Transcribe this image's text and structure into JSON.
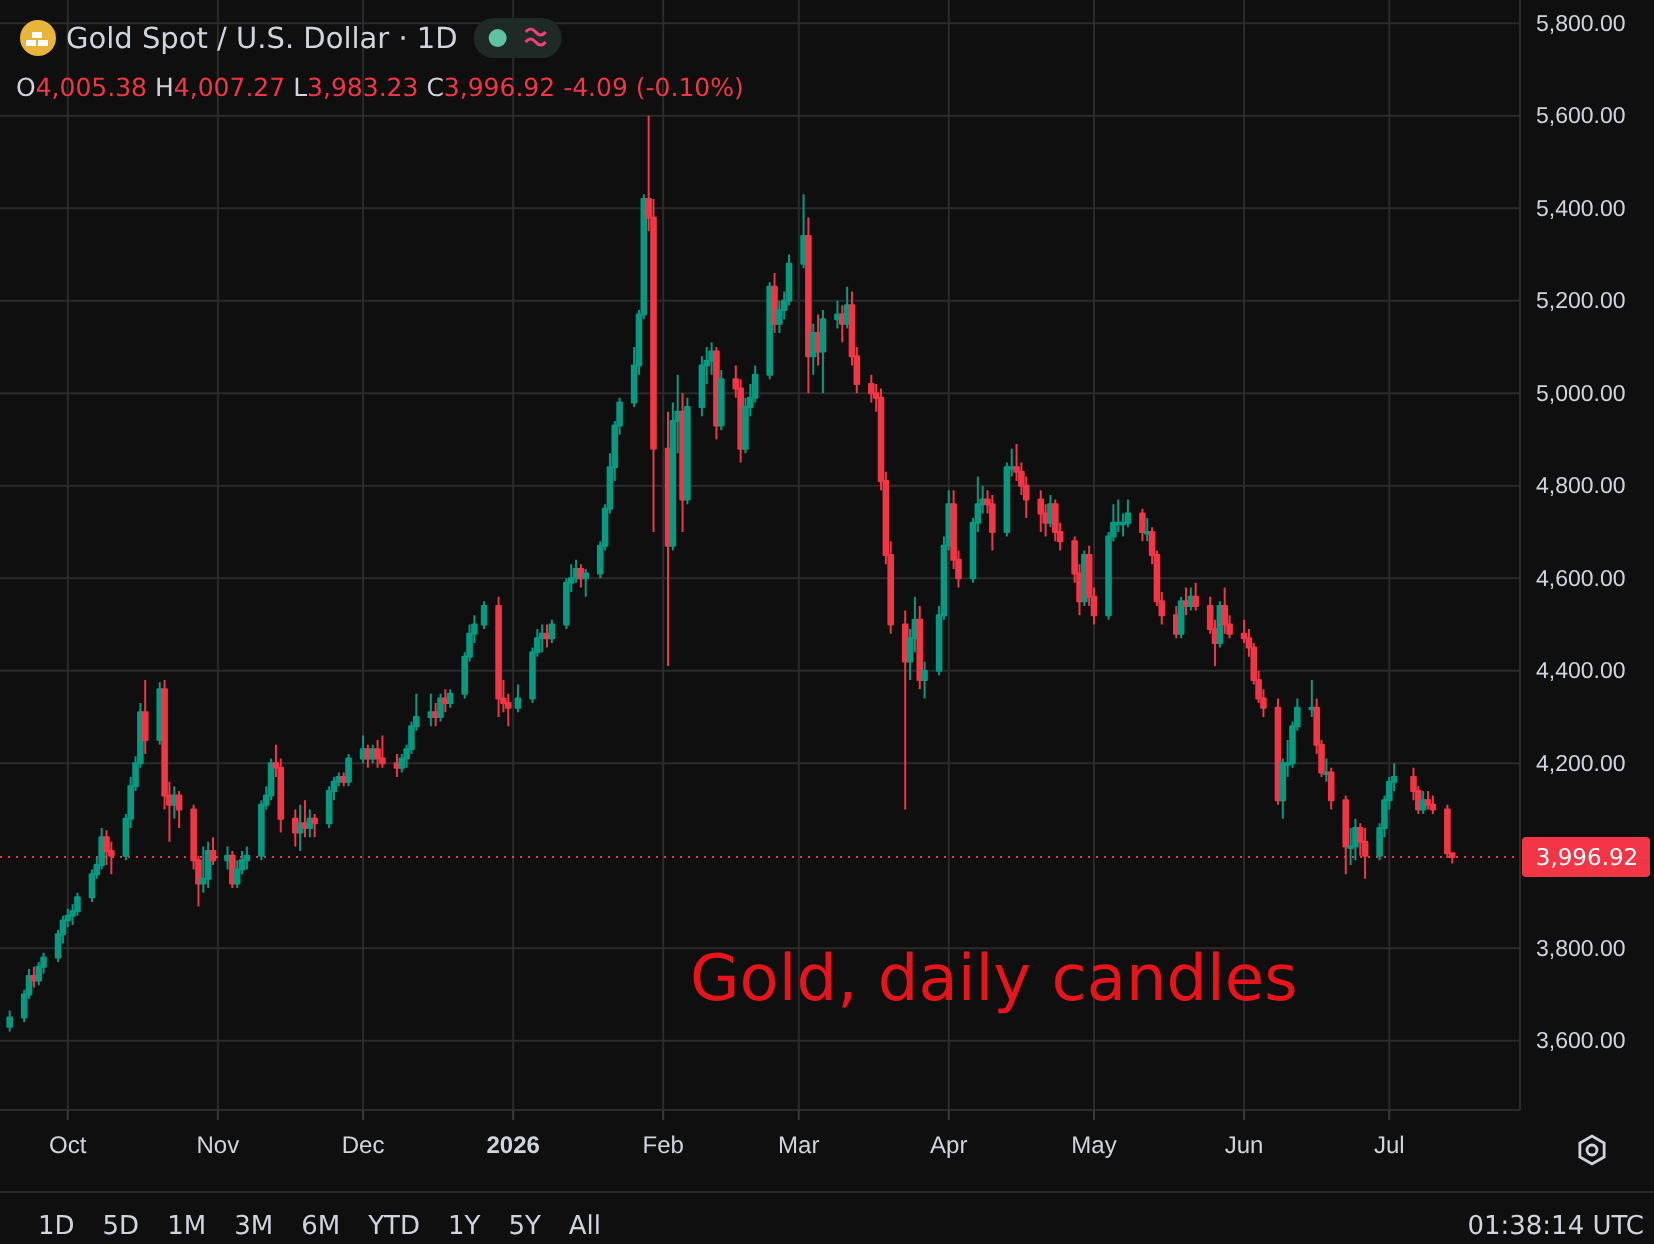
{
  "chart_data": {
    "type": "candlestick",
    "title": "Gold Spot / U.S. Dollar · 1D",
    "subtitle": "O4,005.38 H4,007.27 L3,983.23 C3,996.92 -4.09 (-0.10%)",
    "annotations": [
      "Gold, daily candles",
      "1D",
      "5D",
      "1M",
      "3M",
      "6M",
      "YTD",
      "1Y",
      "5Y",
      "All",
      "01:38:14 UTC"
    ],
    "xlim": [
      "2025-09-17",
      "2026-07-28"
    ],
    "ylim": [
      3450,
      5850
    ],
    "xticks": [
      {
        "value": "2025-10-01",
        "label": "Oct"
      },
      {
        "value": "2025-11-01",
        "label": "Nov"
      },
      {
        "value": "2025-12-01",
        "label": "Dec"
      },
      {
        "value": "2026-01-01",
        "label": "2026"
      },
      {
        "value": "2026-02-01",
        "label": "Feb"
      },
      {
        "value": "2026-03-01",
        "label": "Mar"
      },
      {
        "value": "2026-04-01",
        "label": "Apr"
      },
      {
        "value": "2026-05-01",
        "label": "May"
      },
      {
        "value": "2026-06-01",
        "label": "Jun"
      },
      {
        "value": "2026-07-01",
        "label": "Jul"
      }
    ],
    "yticks": [
      {
        "value": 3600,
        "label": "3,600.00"
      },
      {
        "value": 3800,
        "label": "3,800.00"
      },
      {
        "value": 4200,
        "label": "4,200.00"
      },
      {
        "value": 4400,
        "label": "4,400.00"
      },
      {
        "value": 4600,
        "label": "4,600.00"
      },
      {
        "value": 4800,
        "label": "4,800.00"
      },
      {
        "value": 5000,
        "label": "5,000.00"
      },
      {
        "value": 5200,
        "label": "5,200.00"
      },
      {
        "value": 5400,
        "label": "5,400.00"
      },
      {
        "value": 5600,
        "label": "5,600.00"
      },
      {
        "value": 5800,
        "label": "5,800.00"
      }
    ],
    "grid": true,
    "ref_lines": [
      {
        "axis": "y",
        "value": 3996.92,
        "label": "3,996.92",
        "color": "#f23645",
        "line_style": "dotted"
      }
    ],
    "x": [
      "2025-09-19",
      "2025-09-22",
      "2025-09-23",
      "2025-09-24",
      "2025-09-25",
      "2025-09-26",
      "2025-09-29",
      "2025-09-30",
      "2025-10-01",
      "2025-10-02",
      "2025-10-03",
      "2025-10-06",
      "2025-10-07",
      "2025-10-08",
      "2025-10-09",
      "2025-10-10",
      "2025-10-13",
      "2025-10-14",
      "2025-10-15",
      "2025-10-16",
      "2025-10-17",
      "2025-10-20",
      "2025-10-21",
      "2025-10-22",
      "2025-10-23",
      "2025-10-24",
      "2025-10-27",
      "2025-10-28",
      "2025-10-29",
      "2025-10-30",
      "2025-10-31",
      "2025-11-03",
      "2025-11-04",
      "2025-11-05",
      "2025-11-06",
      "2025-11-07",
      "2025-11-10",
      "2025-11-11",
      "2025-11-12",
      "2025-11-13",
      "2025-11-14",
      "2025-11-17",
      "2025-11-18",
      "2025-11-19",
      "2025-11-20",
      "2025-11-21",
      "2025-11-24",
      "2025-11-25",
      "2025-11-26",
      "2025-11-27",
      "2025-11-28",
      "2025-12-01",
      "2025-12-02",
      "2025-12-03",
      "2025-12-04",
      "2025-12-05",
      "2025-12-08",
      "2025-12-09",
      "2025-12-10",
      "2025-12-11",
      "2025-12-12",
      "2025-12-15",
      "2025-12-16",
      "2025-12-17",
      "2025-12-18",
      "2025-12-19",
      "2025-12-22",
      "2025-12-23",
      "2025-12-24",
      "2025-12-26",
      "2025-12-29",
      "2025-12-30",
      "2025-12-31",
      "2026-01-02",
      "2026-01-05",
      "2026-01-06",
      "2026-01-07",
      "2026-01-08",
      "2026-01-09",
      "2026-01-12",
      "2026-01-13",
      "2026-01-14",
      "2026-01-15",
      "2026-01-16",
      "2026-01-19",
      "2026-01-20",
      "2026-01-21",
      "2026-01-22",
      "2026-01-23",
      "2026-01-26",
      "2026-01-27",
      "2026-01-28",
      "2026-01-29",
      "2026-01-30",
      "2026-02-02",
      "2026-02-03",
      "2026-02-04",
      "2026-02-05",
      "2026-02-06",
      "2026-02-09",
      "2026-02-10",
      "2026-02-11",
      "2026-02-12",
      "2026-02-13",
      "2026-02-16",
      "2026-02-17",
      "2026-02-18",
      "2026-02-19",
      "2026-02-20",
      "2026-02-23",
      "2026-02-24",
      "2026-02-25",
      "2026-02-26",
      "2026-02-27",
      "2026-03-02",
      "2026-03-03",
      "2026-03-04",
      "2026-03-05",
      "2026-03-06",
      "2026-03-09",
      "2026-03-10",
      "2026-03-11",
      "2026-03-12",
      "2026-03-13",
      "2026-03-16",
      "2026-03-17",
      "2026-03-18",
      "2026-03-19",
      "2026-03-20",
      "2026-03-23",
      "2026-03-24",
      "2026-03-25",
      "2026-03-26",
      "2026-03-27",
      "2026-03-30",
      "2026-03-31",
      "2026-04-01",
      "2026-04-02",
      "2026-04-03",
      "2026-04-06",
      "2026-04-07",
      "2026-04-08",
      "2026-04-09",
      "2026-04-10",
      "2026-04-13",
      "2026-04-14",
      "2026-04-15",
      "2026-04-16",
      "2026-04-17",
      "2026-04-20",
      "2026-04-21",
      "2026-04-22",
      "2026-04-23",
      "2026-04-24",
      "2026-04-27",
      "2026-04-28",
      "2026-04-29",
      "2026-04-30",
      "2026-05-01",
      "2026-05-04",
      "2026-05-05",
      "2026-05-06",
      "2026-05-07",
      "2026-05-08",
      "2026-05-11",
      "2026-05-12",
      "2026-05-13",
      "2026-05-14",
      "2026-05-15",
      "2026-05-18",
      "2026-05-19",
      "2026-05-20",
      "2026-05-21",
      "2026-05-22",
      "2026-05-25",
      "2026-05-26",
      "2026-05-27",
      "2026-05-28",
      "2026-05-29",
      "2026-06-01",
      "2026-06-02",
      "2026-06-03",
      "2026-06-04",
      "2026-06-05",
      "2026-06-08",
      "2026-06-09",
      "2026-06-10",
      "2026-06-11",
      "2026-06-12",
      "2026-06-15",
      "2026-06-16",
      "2026-06-17",
      "2026-06-18",
      "2026-06-19",
      "2026-06-22",
      "2026-06-23",
      "2026-06-24",
      "2026-06-25",
      "2026-06-26",
      "2026-06-29",
      "2026-06-30",
      "2026-07-01",
      "2026-07-02",
      "2026-07-06",
      "2026-07-07",
      "2026-07-08",
      "2026-07-09",
      "2026-07-10",
      "2026-07-13",
      "2026-07-14"
    ],
    "ohlc": [
      [
        3630,
        3665,
        3620,
        3650
      ],
      [
        3650,
        3710,
        3640,
        3700
      ],
      [
        3700,
        3755,
        3690,
        3740
      ],
      [
        3740,
        3760,
        3715,
        3730
      ],
      [
        3730,
        3770,
        3720,
        3760
      ],
      [
        3760,
        3790,
        3745,
        3780
      ],
      [
        3780,
        3840,
        3770,
        3830
      ],
      [
        3830,
        3870,
        3810,
        3860
      ],
      [
        3860,
        3885,
        3845,
        3870
      ],
      [
        3870,
        3895,
        3850,
        3880
      ],
      [
        3880,
        3920,
        3870,
        3910
      ],
      [
        3910,
        3970,
        3900,
        3960
      ],
      [
        3960,
        3995,
        3950,
        3980
      ],
      [
        3980,
        4060,
        3970,
        4040
      ],
      [
        4040,
        4055,
        3980,
        4010
      ],
      [
        4010,
        4030,
        3960,
        4000
      ],
      [
        4000,
        4090,
        3990,
        4080
      ],
      [
        4080,
        4170,
        4060,
        4150
      ],
      [
        4150,
        4215,
        4140,
        4200
      ],
      [
        4200,
        4330,
        4190,
        4310
      ],
      [
        4310,
        4380,
        4220,
        4250
      ],
      [
        4250,
        4375,
        4240,
        4360
      ],
      [
        4360,
        4380,
        4100,
        4130
      ],
      [
        4130,
        4160,
        4030,
        4110
      ],
      [
        4110,
        4150,
        4080,
        4130
      ],
      [
        4130,
        4140,
        4060,
        4100
      ],
      [
        4100,
        4110,
        3970,
        3990
      ],
      [
        3990,
        4000,
        3890,
        3940
      ],
      [
        3940,
        4020,
        3920,
        3950
      ],
      [
        3950,
        4030,
        3930,
        4010
      ],
      [
        4010,
        4040,
        3980,
        3990
      ],
      [
        3990,
        4020,
        3970,
        4000
      ],
      [
        4000,
        4010,
        3930,
        3940
      ],
      [
        3940,
        3990,
        3930,
        3970
      ],
      [
        3970,
        4010,
        3960,
        3990
      ],
      [
        3990,
        4020,
        3970,
        4000
      ],
      [
        4000,
        4120,
        3990,
        4110
      ],
      [
        4110,
        4150,
        4100,
        4130
      ],
      [
        4130,
        4210,
        4120,
        4200
      ],
      [
        4200,
        4240,
        4170,
        4190
      ],
      [
        4190,
        4210,
        4050,
        4080
      ],
      [
        4080,
        4100,
        4020,
        4050
      ],
      [
        4050,
        4110,
        4010,
        4070
      ],
      [
        4070,
        4120,
        4040,
        4060
      ],
      [
        4060,
        4100,
        4040,
        4080
      ],
      [
        4080,
        4090,
        4040,
        4070
      ],
      [
        4070,
        4150,
        4060,
        4140
      ],
      [
        4140,
        4170,
        4120,
        4160
      ],
      [
        4160,
        4180,
        4150,
        4170
      ],
      [
        4170,
        4180,
        4150,
        4160
      ],
      [
        4160,
        4220,
        4150,
        4210
      ],
      [
        4210,
        4260,
        4200,
        4230
      ],
      [
        4230,
        4240,
        4190,
        4210
      ],
      [
        4210,
        4240,
        4200,
        4230
      ],
      [
        4230,
        4250,
        4190,
        4210
      ],
      [
        4210,
        4260,
        4190,
        4200
      ],
      [
        4200,
        4220,
        4170,
        4190
      ],
      [
        4190,
        4220,
        4180,
        4210
      ],
      [
        4210,
        4240,
        4190,
        4230
      ],
      [
        4230,
        4290,
        4220,
        4280
      ],
      [
        4280,
        4350,
        4270,
        4300
      ],
      [
        4300,
        4350,
        4280,
        4310
      ],
      [
        4310,
        4330,
        4280,
        4300
      ],
      [
        4300,
        4350,
        4290,
        4340
      ],
      [
        4340,
        4360,
        4310,
        4330
      ],
      [
        4330,
        4360,
        4320,
        4350
      ],
      [
        4350,
        4440,
        4340,
        4430
      ],
      [
        4430,
        4500,
        4420,
        4480
      ],
      [
        4480,
        4520,
        4460,
        4500
      ],
      [
        4500,
        4550,
        4490,
        4540
      ],
      [
        4540,
        4560,
        4300,
        4340
      ],
      [
        4340,
        4380,
        4310,
        4330
      ],
      [
        4330,
        4350,
        4280,
        4320
      ],
      [
        4320,
        4370,
        4310,
        4340
      ],
      [
        4340,
        4450,
        4330,
        4440
      ],
      [
        4440,
        4490,
        4430,
        4470
      ],
      [
        4470,
        4500,
        4440,
        4480
      ],
      [
        4480,
        4500,
        4450,
        4470
      ],
      [
        4470,
        4510,
        4460,
        4500
      ],
      [
        4500,
        4600,
        4490,
        4590
      ],
      [
        4590,
        4630,
        4570,
        4600
      ],
      [
        4600,
        4640,
        4590,
        4620
      ],
      [
        4620,
        4630,
        4580,
        4600
      ],
      [
        4600,
        4620,
        4560,
        4610
      ],
      [
        4610,
        4680,
        4600,
        4670
      ],
      [
        4670,
        4760,
        4660,
        4750
      ],
      [
        4750,
        4870,
        4740,
        4840
      ],
      [
        4840,
        4940,
        4810,
        4930
      ],
      [
        4930,
        4990,
        4910,
        4980
      ],
      [
        4980,
        5100,
        4970,
        5060
      ],
      [
        5060,
        5180,
        5040,
        5170
      ],
      [
        5170,
        5430,
        5160,
        5420
      ],
      [
        5420,
        5600,
        5350,
        5380
      ],
      [
        5380,
        5420,
        4700,
        4880
      ],
      [
        4880,
        4960,
        4410,
        4670
      ],
      [
        4670,
        4980,
        4660,
        4940
      ],
      [
        4940,
        5040,
        4870,
        4960
      ],
      [
        4960,
        5000,
        4700,
        4770
      ],
      [
        4770,
        4990,
        4760,
        4970
      ],
      [
        4970,
        5080,
        4950,
        5060
      ],
      [
        5060,
        5100,
        5020,
        5070
      ],
      [
        5070,
        5110,
        5040,
        5090
      ],
      [
        5090,
        5100,
        4900,
        4930
      ],
      [
        4930,
        5050,
        4920,
        5030
      ],
      [
        5030,
        5060,
        4990,
        5010
      ],
      [
        5010,
        5030,
        4850,
        4880
      ],
      [
        4880,
        4990,
        4870,
        4970
      ],
      [
        4970,
        5020,
        4950,
        4990
      ],
      [
        4990,
        5060,
        4980,
        5040
      ],
      [
        5040,
        5240,
        5030,
        5230
      ],
      [
        5230,
        5260,
        5130,
        5150
      ],
      [
        5150,
        5200,
        5130,
        5180
      ],
      [
        5180,
        5220,
        5160,
        5200
      ],
      [
        5200,
        5300,
        5190,
        5280
      ],
      [
        5280,
        5430,
        5270,
        5340
      ],
      [
        5340,
        5380,
        5000,
        5080
      ],
      [
        5080,
        5150,
        5040,
        5130
      ],
      [
        5130,
        5170,
        5060,
        5090
      ],
      [
        5090,
        5180,
        5000,
        5160
      ],
      [
        5160,
        5200,
        5140,
        5170
      ],
      [
        5170,
        5190,
        5110,
        5150
      ],
      [
        5150,
        5230,
        5140,
        5190
      ],
      [
        5190,
        5220,
        5060,
        5080
      ],
      [
        5080,
        5100,
        5000,
        5020
      ],
      [
        5020,
        5040,
        4980,
        5000
      ],
      [
        5000,
        5020,
        4960,
        4990
      ],
      [
        4990,
        5010,
        4790,
        4810
      ],
      [
        4810,
        4830,
        4630,
        4650
      ],
      [
        4650,
        4680,
        4480,
        4500
      ],
      [
        4500,
        4530,
        4100,
        4420
      ],
      [
        4420,
        4490,
        4380,
        4470
      ],
      [
        4470,
        4560,
        4440,
        4510
      ],
      [
        4510,
        4540,
        4360,
        4380
      ],
      [
        4380,
        4420,
        4340,
        4400
      ],
      [
        4400,
        4540,
        4390,
        4520
      ],
      [
        4520,
        4690,
        4510,
        4670
      ],
      [
        4670,
        4790,
        4660,
        4760
      ],
      [
        4760,
        4790,
        4620,
        4640
      ],
      [
        4640,
        4660,
        4580,
        4600
      ],
      [
        4600,
        4730,
        4590,
        4720
      ],
      [
        4720,
        4820,
        4700,
        4760
      ],
      [
        4760,
        4800,
        4740,
        4770
      ],
      [
        4770,
        4790,
        4740,
        4760
      ],
      [
        4760,
        4780,
        4660,
        4700
      ],
      [
        4700,
        4850,
        4690,
        4840
      ],
      [
        4840,
        4880,
        4820,
        4840
      ],
      [
        4840,
        4890,
        4810,
        4830
      ],
      [
        4830,
        4850,
        4780,
        4800
      ],
      [
        4800,
        4820,
        4730,
        4770
      ],
      [
        4770,
        4790,
        4700,
        4740
      ],
      [
        4740,
        4760,
        4690,
        4720
      ],
      [
        4720,
        4780,
        4710,
        4760
      ],
      [
        4760,
        4770,
        4680,
        4700
      ],
      [
        4700,
        4720,
        4660,
        4680
      ],
      [
        4680,
        4690,
        4590,
        4610
      ],
      [
        4610,
        4630,
        4520,
        4550
      ],
      [
        4550,
        4660,
        4540,
        4650
      ],
      [
        4650,
        4670,
        4540,
        4560
      ],
      [
        4560,
        4580,
        4500,
        4520
      ],
      [
        4520,
        4700,
        4510,
        4690
      ],
      [
        4690,
        4760,
        4680,
        4720
      ],
      [
        4720,
        4770,
        4700,
        4720
      ],
      [
        4720,
        4740,
        4690,
        4720
      ],
      [
        4720,
        4770,
        4710,
        4740
      ],
      [
        4740,
        4750,
        4680,
        4700
      ],
      [
        4700,
        4730,
        4680,
        4700
      ],
      [
        4700,
        4710,
        4630,
        4650
      ],
      [
        4650,
        4660,
        4540,
        4550
      ],
      [
        4550,
        4570,
        4500,
        4520
      ],
      [
        4520,
        4540,
        4470,
        4480
      ],
      [
        4480,
        4560,
        4470,
        4550
      ],
      [
        4550,
        4580,
        4520,
        4540
      ],
      [
        4540,
        4580,
        4530,
        4560
      ],
      [
        4560,
        4590,
        4530,
        4540
      ],
      [
        4540,
        4560,
        4480,
        4490
      ],
      [
        4490,
        4510,
        4410,
        4460
      ],
      [
        4460,
        4550,
        4450,
        4540
      ],
      [
        4540,
        4580,
        4480,
        4500
      ],
      [
        4500,
        4520,
        4470,
        4480
      ],
      [
        4480,
        4510,
        4460,
        4470
      ],
      [
        4470,
        4490,
        4430,
        4450
      ],
      [
        4450,
        4460,
        4370,
        4380
      ],
      [
        4380,
        4400,
        4330,
        4340
      ],
      [
        4340,
        4360,
        4300,
        4320
      ],
      [
        4320,
        4340,
        4110,
        4120
      ],
      [
        4120,
        4210,
        4080,
        4200
      ],
      [
        4200,
        4250,
        4170,
        4200
      ],
      [
        4200,
        4290,
        4190,
        4280
      ],
      [
        4280,
        4340,
        4270,
        4320
      ],
      [
        4320,
        4380,
        4300,
        4320
      ],
      [
        4320,
        4340,
        4220,
        4240
      ],
      [
        4240,
        4250,
        4170,
        4180
      ],
      [
        4180,
        4210,
        4160,
        4180
      ],
      [
        4180,
        4190,
        4100,
        4120
      ],
      [
        4120,
        4130,
        3960,
        4020
      ],
      [
        4020,
        4060,
        3980,
        4020
      ],
      [
        4020,
        4080,
        3990,
        4060
      ],
      [
        4060,
        4070,
        4000,
        4030
      ],
      [
        4030,
        4060,
        3950,
        4000
      ],
      [
        4000,
        4070,
        3990,
        4060
      ],
      [
        4060,
        4130,
        4040,
        4120
      ],
      [
        4120,
        4170,
        4100,
        4160
      ],
      [
        4160,
        4200,
        4140,
        4170
      ],
      [
        4170,
        4190,
        4120,
        4140
      ],
      [
        4140,
        4150,
        4090,
        4100
      ],
      [
        4100,
        4140,
        4090,
        4120
      ],
      [
        4120,
        4140,
        4100,
        4110
      ],
      [
        4110,
        4130,
        4090,
        4100
      ],
      [
        4100,
        4110,
        3995,
        4005.38
      ],
      [
        4005.38,
        4007.27,
        3983.23,
        3996.92
      ]
    ]
  }
}
